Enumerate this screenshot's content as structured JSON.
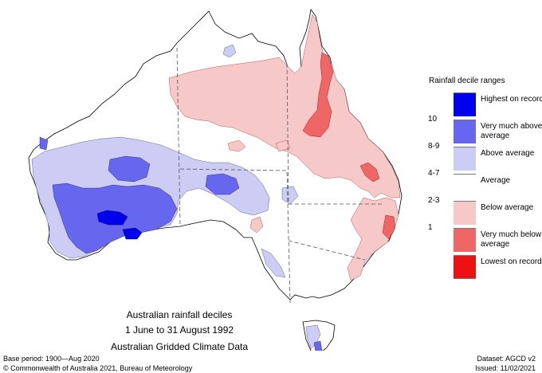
{
  "map": {
    "caption_line1": "Australian rainfall deciles",
    "caption_line2": "1 June to 31 August 1992",
    "caption_line3": "Australian Gridded Climate Data"
  },
  "legend": {
    "title": "Rainfall decile ranges",
    "items": [
      {
        "range": "",
        "label": "Highest on record",
        "color": "#0000ee"
      },
      {
        "range": "10",
        "label": "Very much above average",
        "color": "#6666ee"
      },
      {
        "range": "8-9",
        "label": "Above average",
        "color": "#ccccf4"
      },
      {
        "range": "4-7",
        "label": "Average",
        "color": "#ffffff"
      },
      {
        "range": "2-3",
        "label": "Below average",
        "color": "#f7c8c8"
      },
      {
        "range": "1",
        "label": "Very much below average",
        "color": "#ee6666"
      },
      {
        "range": "",
        "label": "Lowest on record",
        "color": "#ee1111"
      }
    ]
  },
  "footer": {
    "base_period": "Base period: 1900—Aug 2020",
    "dataset": "Dataset: AGCD v2",
    "copyright": "© Commonwealth of Australia 2021, Bureau of Meteorology",
    "issued": "Issued: 11/02/2021"
  }
}
